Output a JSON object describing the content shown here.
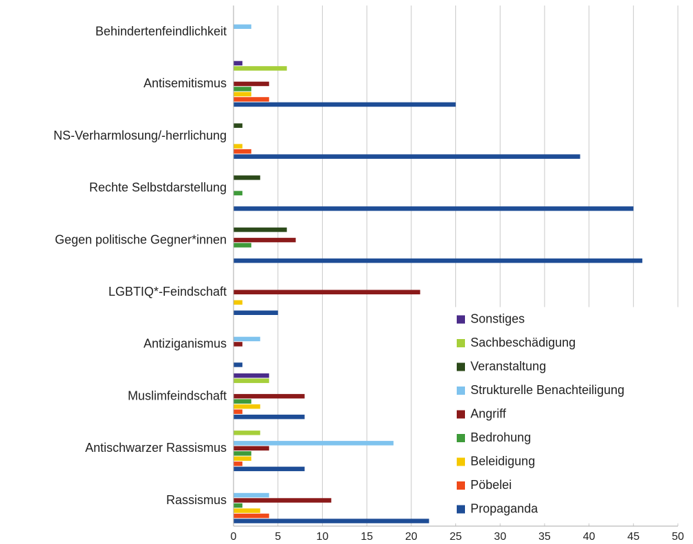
{
  "chart_data": {
    "type": "hbar",
    "categories": [
      "Behindertenfeindlichkeit",
      "Antisemitismus",
      "NS-Verharmlosung/-herrlichung",
      "Rechte Selbstdarstellung",
      "Gegen politische Gegner*innen",
      "LGBTIQ*-Feindschaft",
      "Antiziganismus",
      "Muslimfeindschaft",
      "Antischwarzer Rassismus",
      "Rassismus"
    ],
    "series": [
      {
        "name": "Sonstiges",
        "color": "#4b2c8a",
        "values": [
          0,
          1,
          0,
          0,
          0,
          0,
          0,
          4,
          0,
          0
        ]
      },
      {
        "name": "Sachbeschädigung",
        "color": "#a6cf3a",
        "values": [
          0,
          6,
          0,
          0,
          0,
          0,
          0,
          4,
          3,
          0
        ]
      },
      {
        "name": "Veranstaltung",
        "color": "#2c4a1a",
        "values": [
          0,
          0,
          1,
          3,
          6,
          0,
          0,
          0,
          0,
          0
        ]
      },
      {
        "name": "Strukturelle Benachteiligung",
        "color": "#7fc3ee",
        "values": [
          2,
          0,
          0,
          0,
          0,
          0,
          3,
          0,
          18,
          4
        ]
      },
      {
        "name": "Angriff",
        "color": "#8b1a1a",
        "values": [
          0,
          4,
          0,
          0,
          7,
          21,
          1,
          8,
          4,
          11
        ]
      },
      {
        "name": "Bedrohung",
        "color": "#3f9b3a",
        "values": [
          0,
          2,
          0,
          1,
          2,
          0,
          0,
          2,
          2,
          1
        ]
      },
      {
        "name": "Beleidigung",
        "color": "#f5c800",
        "values": [
          0,
          2,
          1,
          0,
          0,
          1,
          0,
          3,
          2,
          3
        ]
      },
      {
        "name": "Pöbelei",
        "color": "#f04a1a",
        "values": [
          0,
          4,
          2,
          0,
          0,
          0,
          0,
          1,
          1,
          4
        ]
      },
      {
        "name": "Propaganda",
        "color": "#1e4d96",
        "values": [
          0,
          25,
          39,
          45,
          46,
          5,
          1,
          8,
          8,
          22
        ]
      }
    ],
    "xlim": [
      0,
      50
    ],
    "xticks": [
      0,
      5,
      10,
      15,
      20,
      25,
      30,
      35,
      40,
      45,
      50
    ],
    "grid": true,
    "legend": "lower right"
  }
}
